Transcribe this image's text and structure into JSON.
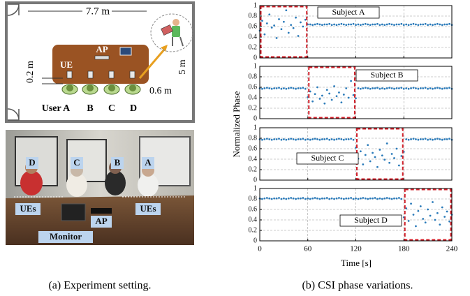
{
  "floor_plan": {
    "width_label": "7.7 m",
    "ap_label": "AP",
    "ue_label": "UE",
    "gap_label": "0.2 m",
    "height_label": "5 m",
    "spacing_label": "0.6 m",
    "users": [
      "User A",
      "B",
      "C",
      "D"
    ]
  },
  "photo": {
    "people": [
      "D",
      "C",
      "B",
      "A"
    ],
    "ues_left": "UEs",
    "ues_right": "UEs",
    "ap": "AP",
    "monitor": "Monitor"
  },
  "captions": [
    "(a) Experiment setting.",
    "(b) CSI phase variations."
  ],
  "axis_labels": {
    "ylabel": "Normalized Phase",
    "xlabel": "Time [s]"
  },
  "chart_data": [
    {
      "type": "scatter",
      "annotation": "Subject A",
      "color": "#2b7bba",
      "highlight_x": [
        0,
        60
      ],
      "highlight_color": "#d0202a",
      "xlim": [
        0,
        240
      ],
      "xticks": [
        0,
        60,
        120,
        180,
        240
      ],
      "xtick_labels": false,
      "ylim": [
        0,
        1
      ],
      "yticks": [
        0,
        0.2,
        0.4,
        0.6,
        0.8,
        1
      ],
      "grid": true,
      "x": [
        0,
        3,
        6,
        9,
        12,
        15,
        18,
        21,
        24,
        27,
        30,
        33,
        36,
        39,
        42,
        45,
        48,
        51,
        54,
        57,
        60,
        63,
        66,
        69,
        72,
        75,
        78,
        81,
        84,
        87,
        90,
        93,
        96,
        99,
        102,
        105,
        108,
        111,
        114,
        117,
        120,
        123,
        126,
        129,
        132,
        135,
        138,
        141,
        144,
        147,
        150,
        153,
        156,
        159,
        162,
        165,
        168,
        171,
        174,
        177,
        180,
        183,
        186,
        189,
        192,
        195,
        198,
        201,
        204,
        207,
        210,
        213,
        216,
        219,
        222,
        225,
        228,
        231,
        234,
        237,
        240
      ],
      "values": [
        0.52,
        0.71,
        0.45,
        0.66,
        0.83,
        0.58,
        0.62,
        0.38,
        0.74,
        0.55,
        0.69,
        0.91,
        0.48,
        0.63,
        0.57,
        0.77,
        0.42,
        0.68,
        0.6,
        0.73,
        0.64,
        0.64,
        0.63,
        0.64,
        0.65,
        0.64,
        0.63,
        0.64,
        0.64,
        0.65,
        0.63,
        0.64,
        0.63,
        0.64,
        0.65,
        0.64,
        0.63,
        0.64,
        0.64,
        0.65,
        0.63,
        0.64,
        0.63,
        0.64,
        0.65,
        0.64,
        0.63,
        0.64,
        0.64,
        0.65,
        0.63,
        0.64,
        0.63,
        0.64,
        0.65,
        0.64,
        0.63,
        0.64,
        0.64,
        0.65,
        0.63,
        0.64,
        0.63,
        0.64,
        0.65,
        0.64,
        0.63,
        0.64,
        0.64,
        0.65,
        0.63,
        0.64,
        0.63,
        0.64,
        0.65,
        0.64,
        0.63,
        0.64,
        0.64,
        0.65,
        0.63
      ]
    },
    {
      "type": "scatter",
      "annotation": "Subject B",
      "color": "#2b7bba",
      "highlight_x": [
        60,
        120
      ],
      "highlight_color": "#d0202a",
      "xlim": [
        0,
        240
      ],
      "xticks": [
        0,
        60,
        120,
        180,
        240
      ],
      "xtick_labels": false,
      "ylim": [
        0,
        1
      ],
      "yticks": [
        0,
        0.2,
        0.4,
        0.6,
        0.8,
        1
      ],
      "grid": true,
      "x": [
        0,
        3,
        6,
        9,
        12,
        15,
        18,
        21,
        24,
        27,
        30,
        33,
        36,
        39,
        42,
        45,
        48,
        51,
        54,
        57,
        60,
        63,
        66,
        69,
        72,
        75,
        78,
        81,
        84,
        87,
        90,
        93,
        96,
        99,
        102,
        105,
        108,
        111,
        114,
        117,
        120,
        123,
        126,
        129,
        132,
        135,
        138,
        141,
        144,
        147,
        150,
        153,
        156,
        159,
        162,
        165,
        168,
        171,
        174,
        177,
        180,
        183,
        186,
        189,
        192,
        195,
        198,
        201,
        204,
        207,
        210,
        213,
        216,
        219,
        222,
        225,
        228,
        231,
        234,
        237,
        240
      ],
      "values": [
        0.58,
        0.57,
        0.58,
        0.59,
        0.58,
        0.57,
        0.58,
        0.58,
        0.59,
        0.57,
        0.58,
        0.57,
        0.58,
        0.59,
        0.58,
        0.57,
        0.58,
        0.58,
        0.59,
        0.57,
        0.41,
        0.52,
        0.33,
        0.47,
        0.6,
        0.38,
        0.44,
        0.29,
        0.55,
        0.48,
        0.36,
        0.62,
        0.43,
        0.5,
        0.31,
        0.46,
        0.58,
        0.4,
        0.72,
        0.45,
        0.39,
        0.58,
        0.57,
        0.58,
        0.59,
        0.58,
        0.57,
        0.58,
        0.58,
        0.59,
        0.57,
        0.58,
        0.57,
        0.58,
        0.59,
        0.58,
        0.57,
        0.58,
        0.58,
        0.59,
        0.57,
        0.58,
        0.57,
        0.58,
        0.59,
        0.58,
        0.57,
        0.58,
        0.58,
        0.59,
        0.57,
        0.58,
        0.57,
        0.58,
        0.59,
        0.58,
        0.57,
        0.58,
        0.58,
        0.59,
        0.57
      ]
    },
    {
      "type": "scatter",
      "annotation": "Subject C",
      "color": "#2b7bba",
      "highlight_x": [
        120,
        180
      ],
      "highlight_color": "#d0202a",
      "xlim": [
        0,
        240
      ],
      "xticks": [
        0,
        60,
        120,
        180,
        240
      ],
      "xtick_labels": false,
      "ylim": [
        0,
        1
      ],
      "yticks": [
        0,
        0.2,
        0.4,
        0.6,
        0.8,
        1
      ],
      "grid": true,
      "x": [
        0,
        3,
        6,
        9,
        12,
        15,
        18,
        21,
        24,
        27,
        30,
        33,
        36,
        39,
        42,
        45,
        48,
        51,
        54,
        57,
        60,
        63,
        66,
        69,
        72,
        75,
        78,
        81,
        84,
        87,
        90,
        93,
        96,
        99,
        102,
        105,
        108,
        111,
        114,
        117,
        120,
        123,
        126,
        129,
        132,
        135,
        138,
        141,
        144,
        147,
        150,
        153,
        156,
        159,
        162,
        165,
        168,
        171,
        174,
        177,
        180,
        183,
        186,
        189,
        192,
        195,
        198,
        201,
        204,
        207,
        210,
        213,
        216,
        219,
        222,
        225,
        228,
        231,
        234,
        237,
        240
      ],
      "values": [
        0.78,
        0.77,
        0.78,
        0.79,
        0.78,
        0.77,
        0.78,
        0.78,
        0.79,
        0.77,
        0.78,
        0.77,
        0.78,
        0.79,
        0.78,
        0.77,
        0.78,
        0.78,
        0.79,
        0.77,
        0.78,
        0.77,
        0.78,
        0.79,
        0.78,
        0.77,
        0.78,
        0.78,
        0.79,
        0.77,
        0.78,
        0.77,
        0.78,
        0.79,
        0.78,
        0.77,
        0.78,
        0.78,
        0.79,
        0.77,
        0.62,
        0.41,
        0.55,
        0.3,
        0.48,
        0.67,
        0.36,
        0.52,
        0.44,
        0.25,
        0.58,
        0.47,
        0.39,
        0.7,
        0.33,
        0.5,
        0.42,
        0.6,
        0.28,
        0.46,
        0.54,
        0.78,
        0.77,
        0.78,
        0.79,
        0.78,
        0.77,
        0.78,
        0.78,
        0.79,
        0.77,
        0.78,
        0.77,
        0.78,
        0.79,
        0.78,
        0.77,
        0.78,
        0.78,
        0.79,
        0.77
      ]
    },
    {
      "type": "scatter",
      "annotation": "Subject D",
      "color": "#2b7bba",
      "highlight_x": [
        180,
        240
      ],
      "highlight_color": "#d0202a",
      "xlim": [
        0,
        240
      ],
      "xticks": [
        0,
        60,
        120,
        180,
        240
      ],
      "xtick_labels": true,
      "ylim": [
        0,
        1
      ],
      "yticks": [
        0,
        0.2,
        0.4,
        0.6,
        0.8,
        1
      ],
      "grid": true,
      "x": [
        0,
        3,
        6,
        9,
        12,
        15,
        18,
        21,
        24,
        27,
        30,
        33,
        36,
        39,
        42,
        45,
        48,
        51,
        54,
        57,
        60,
        63,
        66,
        69,
        72,
        75,
        78,
        81,
        84,
        87,
        90,
        93,
        96,
        99,
        102,
        105,
        108,
        111,
        114,
        117,
        120,
        123,
        126,
        129,
        132,
        135,
        138,
        141,
        144,
        147,
        150,
        153,
        156,
        159,
        162,
        165,
        168,
        171,
        174,
        177,
        180,
        183,
        186,
        189,
        192,
        195,
        198,
        201,
        204,
        207,
        210,
        213,
        216,
        219,
        222,
        225,
        228,
        231,
        234,
        237,
        240
      ],
      "values": [
        0.81,
        0.8,
        0.81,
        0.82,
        0.81,
        0.8,
        0.81,
        0.81,
        0.82,
        0.8,
        0.81,
        0.8,
        0.81,
        0.82,
        0.81,
        0.8,
        0.81,
        0.81,
        0.82,
        0.8,
        0.81,
        0.8,
        0.81,
        0.82,
        0.81,
        0.8,
        0.81,
        0.81,
        0.82,
        0.8,
        0.81,
        0.8,
        0.81,
        0.82,
        0.81,
        0.8,
        0.81,
        0.81,
        0.82,
        0.8,
        0.81,
        0.8,
        0.81,
        0.82,
        0.81,
        0.8,
        0.81,
        0.81,
        0.82,
        0.8,
        0.81,
        0.8,
        0.81,
        0.82,
        0.81,
        0.8,
        0.81,
        0.81,
        0.82,
        0.8,
        0.45,
        0.62,
        0.38,
        0.71,
        0.5,
        0.28,
        0.57,
        0.66,
        0.42,
        0.35,
        0.6,
        0.48,
        0.74,
        0.4,
        0.53,
        0.31,
        0.64,
        0.46,
        0.56,
        0.37,
        0.5
      ]
    }
  ]
}
